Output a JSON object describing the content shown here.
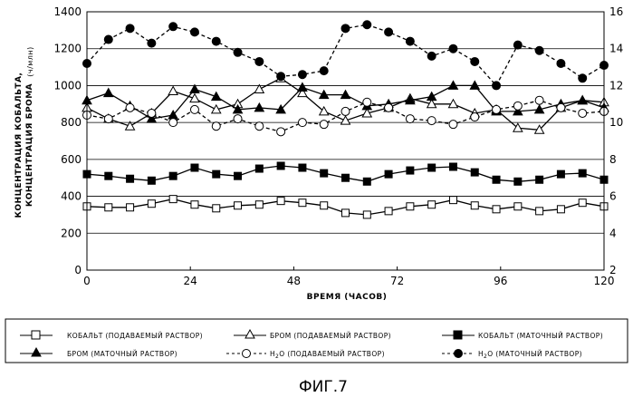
{
  "chart_data": {
    "type": "line",
    "xlabel": "ВРЕМЯ (ЧАСОВ)",
    "ylabel": [
      "КОНЦЕНТРАЦИЯ КОБАЛЬТА,",
      "КОНЦЕНТРАЦИЯ БРОМА"
    ],
    "ylabel_unit": "(ч/млн)",
    "xlim": [
      0,
      120
    ],
    "ylim": [
      0,
      1400
    ],
    "y2lim": [
      2,
      16
    ],
    "x_ticks": [
      "0",
      "24",
      "48",
      "72",
      "96",
      "120"
    ],
    "y_ticks": [
      "0",
      "200",
      "400",
      "600",
      "800",
      "1000",
      "1200",
      "1400"
    ],
    "y2_ticks": [
      "2",
      "4",
      "6",
      "8",
      "10",
      "12",
      "14",
      "16"
    ],
    "grid": "horizontal",
    "legend_position": "bottom",
    "figure_label": "ФИГ.7",
    "series": [
      {
        "name": "КОБАЛЬТ (ПОДАВАЕМЫЙ РАСТВОР)",
        "axis": "left",
        "marker": "square-open",
        "line": "solid",
        "x": [
          0,
          5,
          10,
          15,
          20,
          25,
          30,
          35,
          40,
          45,
          50,
          55,
          60,
          65,
          70,
          75,
          80,
          85,
          90,
          95,
          100,
          105,
          110,
          115,
          120
        ],
        "y": [
          345,
          340,
          340,
          360,
          385,
          355,
          335,
          350,
          355,
          375,
          365,
          350,
          310,
          300,
          320,
          345,
          355,
          380,
          350,
          330,
          345,
          320,
          330,
          365,
          345
        ]
      },
      {
        "name": "БРОМ (ПОДАВАЕМЫЙ РАСТВОР)",
        "axis": "left",
        "marker": "triangle-open",
        "line": "solid",
        "x": [
          0,
          5,
          10,
          15,
          20,
          25,
          30,
          35,
          40,
          45,
          50,
          55,
          60,
          65,
          70,
          75,
          80,
          85,
          90,
          95,
          100,
          105,
          110,
          115,
          120
        ],
        "y": [
          880,
          820,
          780,
          850,
          970,
          930,
          870,
          900,
          980,
          1040,
          960,
          860,
          810,
          850,
          880,
          930,
          900,
          900,
          850,
          870,
          770,
          760,
          880,
          920,
          910
        ]
      },
      {
        "name": "КОБАЛЬТ (МАТОЧНЫЙ РАСТВОР)",
        "axis": "left",
        "marker": "square-filled",
        "line": "solid",
        "x": [
          0,
          5,
          10,
          15,
          20,
          25,
          30,
          35,
          40,
          45,
          50,
          55,
          60,
          65,
          70,
          75,
          80,
          85,
          90,
          95,
          100,
          105,
          110,
          115,
          120
        ],
        "y": [
          520,
          510,
          495,
          485,
          510,
          555,
          520,
          510,
          550,
          565,
          555,
          525,
          500,
          480,
          520,
          540,
          555,
          560,
          530,
          490,
          480,
          490,
          520,
          525,
          490
        ]
      },
      {
        "name": "БРОМ (МАТОЧНЫЙ РАСТВОР)",
        "axis": "left",
        "marker": "triangle-filled",
        "line": "solid",
        "x": [
          0,
          5,
          10,
          15,
          20,
          25,
          30,
          35,
          40,
          45,
          50,
          55,
          60,
          65,
          70,
          75,
          80,
          85,
          90,
          95,
          100,
          105,
          110,
          115,
          120
        ],
        "y": [
          920,
          960,
          890,
          820,
          840,
          980,
          940,
          870,
          880,
          870,
          990,
          950,
          950,
          890,
          900,
          920,
          940,
          1000,
          1000,
          860,
          860,
          870,
          900,
          920,
          880
        ]
      },
      {
        "name": "H2O (ПОДАВАЕМЫЙ РАСТВОР)",
        "axis": "right",
        "marker": "circle-open",
        "line": "dashed",
        "x": [
          0,
          5,
          10,
          15,
          20,
          25,
          30,
          35,
          40,
          45,
          50,
          55,
          60,
          65,
          70,
          75,
          80,
          85,
          90,
          95,
          100,
          105,
          110,
          115,
          120
        ],
        "y": [
          10.4,
          10.2,
          10.8,
          10.5,
          10.0,
          10.7,
          9.8,
          10.2,
          9.8,
          9.5,
          10.0,
          9.9,
          10.6,
          11.1,
          10.8,
          10.2,
          10.1,
          9.9,
          10.3,
          10.7,
          10.9,
          11.2,
          10.8,
          10.5,
          10.6
        ]
      },
      {
        "name": "H2O (МАТОЧНЫЙ РАСТВОР)",
        "axis": "right",
        "marker": "circle-filled",
        "line": "dashed",
        "x": [
          0,
          5,
          10,
          15,
          20,
          25,
          30,
          35,
          40,
          45,
          50,
          55,
          60,
          65,
          70,
          75,
          80,
          85,
          90,
          95,
          100,
          105,
          110,
          115,
          120
        ],
        "y": [
          13.2,
          14.5,
          15.1,
          14.3,
          15.2,
          14.9,
          14.4,
          13.8,
          13.3,
          12.5,
          12.6,
          12.8,
          15.1,
          15.3,
          14.9,
          14.4,
          13.6,
          14.0,
          13.3,
          12.0,
          14.2,
          13.9,
          13.2,
          12.4,
          13.1
        ]
      }
    ]
  },
  "legend_labels": {
    "co_feed": "КОБАЛЬТ (ПОДАВАЕМЫЙ РАСТВОР)",
    "br_feed": "БРОМ (ПОДАВАЕМЫЙ РАСТВОР)",
    "co_mother": "КОБАЛЬТ (МАТОЧНЫЙ РАСТВОР)",
    "br_mother": "БРОМ (МАТОЧНЫЙ РАСТВОР)",
    "h2o_feed_rest": "(ПОДАВАЕМЫЙ РАСТВОР)",
    "h2o_mother_rest": "(МАТОЧНЫЙ РАСТВОР)",
    "h2o_main": "H",
    "h2o_sub": "2",
    "h2o_end": "O"
  }
}
